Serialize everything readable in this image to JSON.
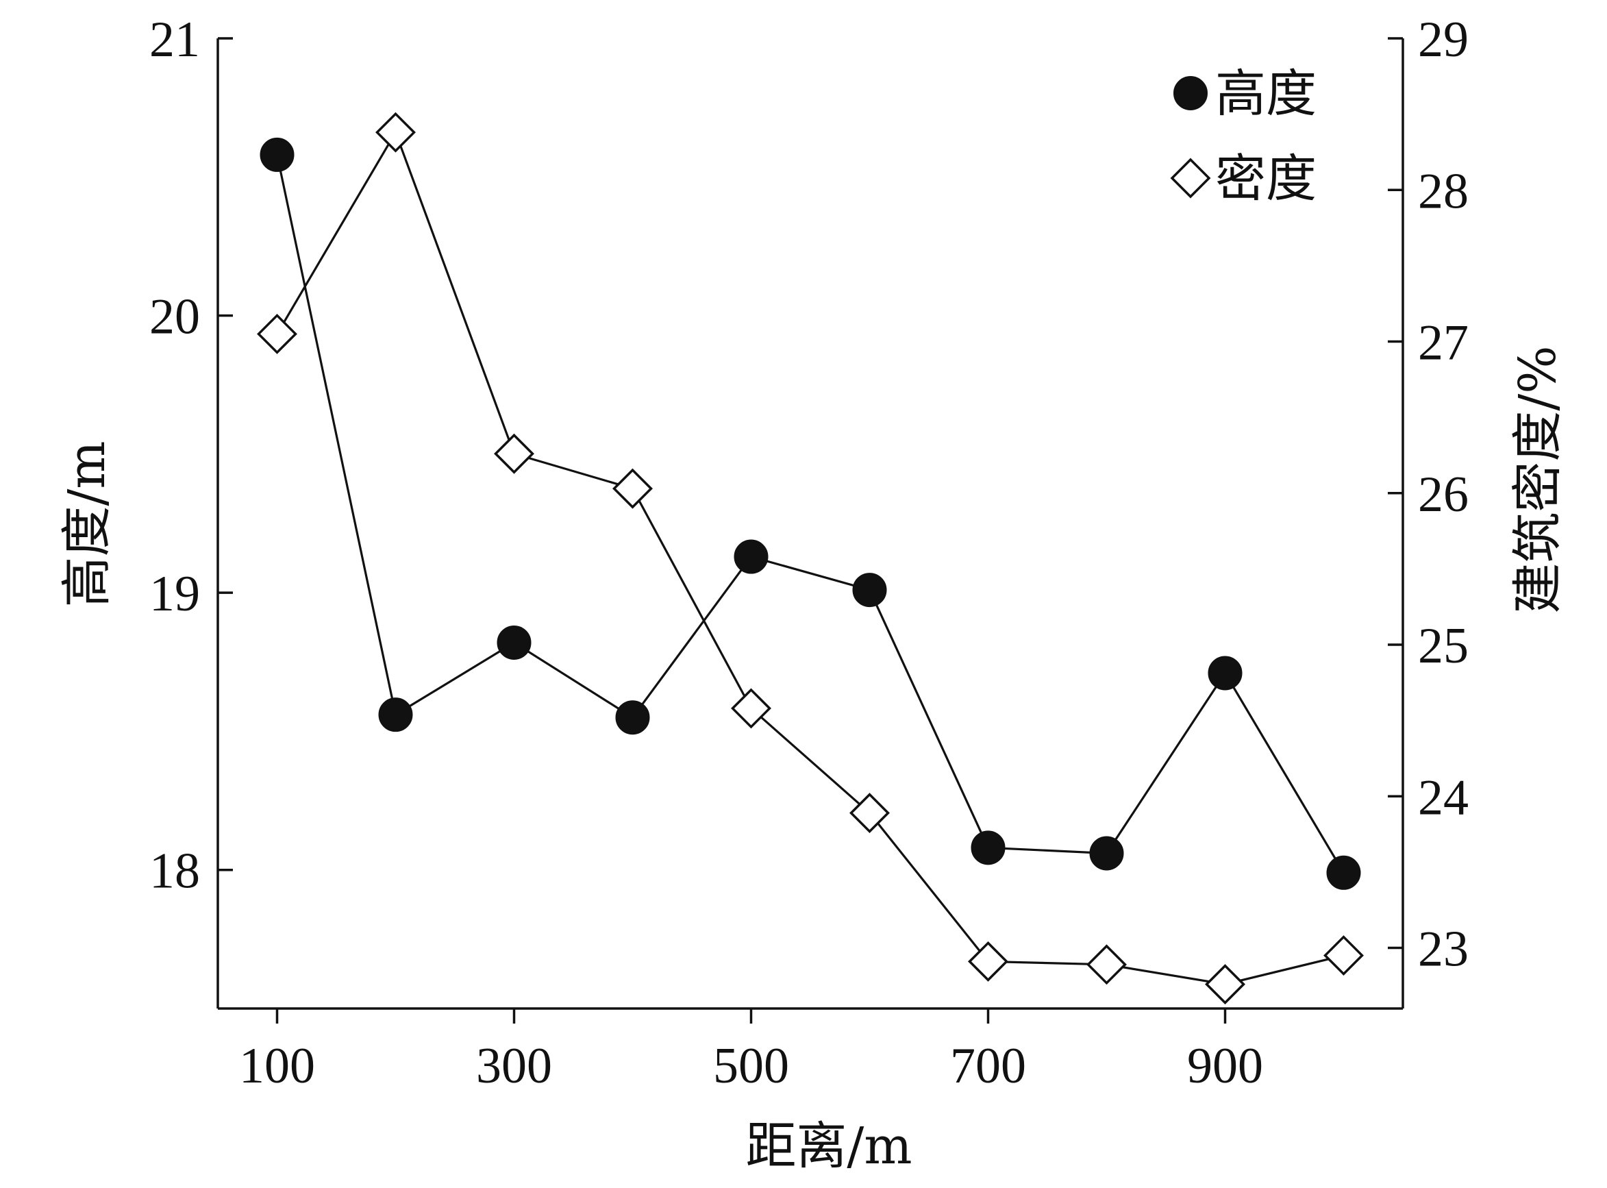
{
  "chart_data": {
    "type": "line",
    "x": [
      100,
      200,
      300,
      400,
      500,
      600,
      700,
      800,
      900,
      1000
    ],
    "x_ticks": [
      "100",
      "300",
      "500",
      "700",
      "900"
    ],
    "x_tick_values": [
      100,
      300,
      500,
      700,
      900
    ],
    "xlabel": "距离/m",
    "xlim": [
      50,
      1050
    ],
    "y_left": {
      "label": "高度/m",
      "lim": [
        17.5,
        21
      ],
      "ticks": [
        "18",
        "19",
        "20",
        "21"
      ],
      "tick_values": [
        18,
        19,
        20,
        21
      ]
    },
    "y_right": {
      "label": "建筑密度/%",
      "lim": [
        22.6,
        29
      ],
      "ticks": [
        "23",
        "24",
        "25",
        "26",
        "27",
        "28",
        "29"
      ],
      "tick_values": [
        23,
        24,
        25,
        26,
        27,
        28,
        29
      ]
    },
    "series": [
      {
        "name": "高度",
        "axis": "left",
        "marker": "filled-circle",
        "values": [
          20.58,
          18.56,
          18.82,
          18.55,
          19.13,
          19.01,
          18.08,
          18.06,
          18.71,
          17.99
        ]
      },
      {
        "name": "密度",
        "axis": "right",
        "marker": "open-diamond",
        "values": [
          27.05,
          28.38,
          26.26,
          26.03,
          24.58,
          23.89,
          22.91,
          22.89,
          22.76,
          22.95
        ]
      }
    ],
    "legend": {
      "position": "top-right",
      "entries": [
        "高度",
        "密度"
      ]
    },
    "grid": false
  }
}
